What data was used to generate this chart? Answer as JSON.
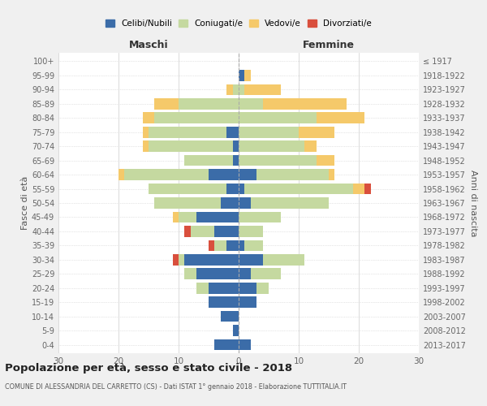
{
  "age_groups": [
    "0-4",
    "5-9",
    "10-14",
    "15-19",
    "20-24",
    "25-29",
    "30-34",
    "35-39",
    "40-44",
    "45-49",
    "50-54",
    "55-59",
    "60-64",
    "65-69",
    "70-74",
    "75-79",
    "80-84",
    "85-89",
    "90-94",
    "95-99",
    "100+"
  ],
  "birth_years": [
    "2013-2017",
    "2008-2012",
    "2003-2007",
    "1998-2002",
    "1993-1997",
    "1988-1992",
    "1983-1987",
    "1978-1982",
    "1973-1977",
    "1968-1972",
    "1963-1967",
    "1958-1962",
    "1953-1957",
    "1948-1952",
    "1943-1947",
    "1938-1942",
    "1933-1937",
    "1928-1932",
    "1923-1927",
    "1918-1922",
    "≤ 1917"
  ],
  "males": {
    "celibi": [
      4,
      1,
      3,
      5,
      5,
      7,
      9,
      2,
      4,
      7,
      3,
      2,
      5,
      1,
      1,
      2,
      0,
      0,
      0,
      0,
      0
    ],
    "coniugati": [
      0,
      0,
      0,
      0,
      2,
      2,
      1,
      2,
      4,
      3,
      11,
      13,
      14,
      8,
      14,
      13,
      14,
      10,
      1,
      0,
      0
    ],
    "vedovi": [
      0,
      0,
      0,
      0,
      0,
      0,
      0,
      0,
      0,
      1,
      0,
      0,
      1,
      0,
      1,
      1,
      2,
      4,
      1,
      0,
      0
    ],
    "divorziati": [
      0,
      0,
      0,
      0,
      0,
      0,
      1,
      1,
      1,
      0,
      0,
      0,
      0,
      0,
      0,
      0,
      0,
      0,
      0,
      0,
      0
    ]
  },
  "females": {
    "nubili": [
      2,
      0,
      0,
      3,
      3,
      2,
      4,
      1,
      0,
      0,
      2,
      1,
      3,
      0,
      0,
      0,
      0,
      0,
      0,
      1,
      0
    ],
    "coniugate": [
      0,
      0,
      0,
      0,
      2,
      5,
      7,
      3,
      4,
      7,
      13,
      18,
      12,
      13,
      11,
      10,
      13,
      4,
      1,
      0,
      0
    ],
    "vedove": [
      0,
      0,
      0,
      0,
      0,
      0,
      0,
      0,
      0,
      0,
      0,
      2,
      1,
      3,
      2,
      6,
      8,
      14,
      6,
      1,
      0
    ],
    "divorziate": [
      0,
      0,
      0,
      0,
      0,
      0,
      0,
      0,
      0,
      0,
      0,
      1,
      0,
      0,
      0,
      0,
      0,
      0,
      0,
      0,
      0
    ]
  },
  "colors": {
    "celibi": "#3b6ca8",
    "coniugati": "#c5d9a0",
    "vedovi": "#f5c96a",
    "divorziati": "#d94f3d"
  },
  "title": "Popolazione per età, sesso e stato civile - 2018",
  "subtitle": "COMUNE DI ALESSANDRIA DEL CARRETTO (CS) - Dati ISTAT 1° gennaio 2018 - Elaborazione TUTTITALIA.IT",
  "xlabel_left": "Maschi",
  "xlabel_right": "Femmine",
  "ylabel_left": "Fasce di età",
  "ylabel_right": "Anni di nascita",
  "xlim": 30,
  "bg_color": "#f0f0f0",
  "plot_bg": "#ffffff",
  "legend_labels": [
    "Celibi/Nubili",
    "Coniugati/e",
    "Vedovi/e",
    "Divorziati/e"
  ]
}
